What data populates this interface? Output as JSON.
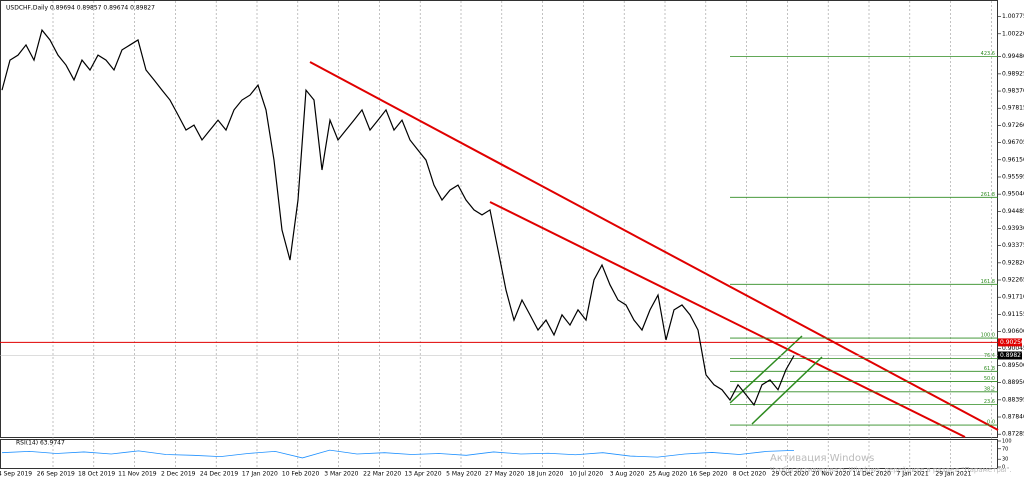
{
  "header": "USDCHF,Daily  0.89694 0.89857 0.89674 0.89827",
  "watermark": [
    "Активация Windows",
    "Чтобы активировать Windows, перейдите в раздел \"Параметры\"."
  ],
  "chart_data": {
    "type": "line",
    "color": "#000000",
    "values": [
      0.984,
      0.9937,
      0.9953,
      0.9986,
      0.9937,
      1.0034,
      1.0002,
      0.9953,
      0.9921,
      0.9873,
      0.9937,
      0.9905,
      0.9953,
      0.9937,
      0.9905,
      0.997,
      0.9986,
      1.0002,
      0.9905,
      0.9873,
      0.984,
      0.9808,
      0.976,
      0.9711,
      0.9727,
      0.9679,
      0.9711,
      0.9743,
      0.9711,
      0.9776,
      0.9808,
      0.9824,
      0.9856,
      0.9776,
      0.9614,
      0.9388,
      0.9291,
      0.9485,
      0.984,
      0.9808,
      0.9582,
      0.9743,
      0.9679,
      0.9711,
      0.9743,
      0.9776,
      0.9711,
      0.9743,
      0.9776,
      0.9711,
      0.9743,
      0.9679,
      0.9646,
      0.9614,
      0.9533,
      0.9485,
      0.9517,
      0.9533,
      0.9485,
      0.9453,
      0.9437,
      0.9453,
      0.9324,
      0.9194,
      0.9097,
      0.9162,
      0.9114,
      0.9065,
      0.9097,
      0.9049,
      0.9114,
      0.9081,
      0.913,
      0.9097,
      0.9227,
      0.9275,
      0.9211,
      0.9162,
      0.9146,
      0.9097,
      0.9065,
      0.913,
      0.9178,
      0.9033,
      0.913,
      0.9146,
      0.9114,
      0.9065,
      0.892,
      0.8888,
      0.8872,
      0.8839,
      0.8888,
      0.8856,
      0.8823,
      0.8888,
      0.8904,
      0.8872,
      0.8937,
      0.89827
    ],
    "ylim": [
      0.87,
      1.0115
    ],
    "yticks": [
      {
        "value": 1.00775,
        "label": "1.00775"
      },
      {
        "value": 1.0022,
        "label": "1.00220"
      },
      {
        "value": 0.9948,
        "label": "0.99480"
      },
      {
        "value": 0.98925,
        "label": "0.98925"
      },
      {
        "value": 0.9837,
        "label": "0.98370"
      },
      {
        "value": 0.97815,
        "label": "0.97815"
      },
      {
        "value": 0.9726,
        "label": "0.97260"
      },
      {
        "value": 0.96705,
        "label": "0.96705"
      },
      {
        "value": 0.9615,
        "label": "0.96150"
      },
      {
        "value": 0.95595,
        "label": "0.95595"
      },
      {
        "value": 0.9504,
        "label": "0.95040"
      },
      {
        "value": 0.94485,
        "label": "0.94485"
      },
      {
        "value": 0.9393,
        "label": "0.93930"
      },
      {
        "value": 0.93375,
        "label": "0.93375"
      },
      {
        "value": 0.9282,
        "label": "0.92820"
      },
      {
        "value": 0.92265,
        "label": "0.92265"
      },
      {
        "value": 0.9171,
        "label": "0.91710"
      },
      {
        "value": 0.91155,
        "label": "0.91155"
      },
      {
        "value": 0.906,
        "label": "0.90600"
      },
      {
        "value": 0.90045,
        "label": "0.90045"
      },
      {
        "value": 0.895,
        "label": "0.89500"
      },
      {
        "value": 0.8895,
        "label": "0.88950"
      },
      {
        "value": 0.88395,
        "label": "0.88395"
      },
      {
        "value": 0.8784,
        "label": "0.87840"
      },
      {
        "value": 0.87285,
        "label": "0.87285"
      }
    ],
    "xtick_labels": [
      "4 Sep 2019",
      "26 Sep 2019",
      "18 Oct 2019",
      "11 Nov 2019",
      "2 Dec 2019",
      "24 Dec 2019",
      "17 Jan 2020",
      "10 Feb 2020",
      "3 Mar 2020",
      "22 Mar 2020",
      "13 Apr 2020",
      "5 May 2020",
      "27 May 2020",
      "18 Jun 2020",
      "10 Jul 2020",
      "3 Aug 2020",
      "25 Aug 2020",
      "16 Sep 2020",
      "8 Oct 2020",
      "29 Oct 2020",
      "20 Nov 2020",
      "14 Dec 2020",
      "7 Jan 2021",
      "29 Jan 2021"
    ],
    "price_labels": [
      {
        "value": 0.9025,
        "label": "0.90250",
        "color": "#e00000"
      },
      {
        "value": 0.89827,
        "label": "0.89827",
        "color": "#000000"
      }
    ],
    "fibonacci": {
      "price_0": 0.8758,
      "price_100": 0.9039,
      "color": "#2e8b20",
      "levels": [
        {
          "value": 0,
          "label": "0.0"
        },
        {
          "value": 23.6,
          "label": "23.6"
        },
        {
          "value": 38.2,
          "label": "38.2"
        },
        {
          "value": 50,
          "label": "50.0"
        },
        {
          "value": 61.8,
          "label": "61.8"
        },
        {
          "value": 76.4,
          "label": "76.4"
        },
        {
          "value": 100,
          "label": "100.0"
        },
        {
          "value": 161.8,
          "label": "161.8"
        },
        {
          "value": 261.8,
          "label": "261.8"
        },
        {
          "value": 423.6,
          "label": "423.6"
        }
      ]
    },
    "rsi": {
      "label": "RSI(14) 63.9747",
      "color": "#1e90ff",
      "ylim": [
        0,
        100
      ],
      "yticks": [
        0,
        30,
        70,
        100
      ],
      "values": [
        55,
        60,
        52,
        58,
        50,
        62,
        48,
        45,
        40,
        52,
        60,
        35,
        65,
        50,
        55,
        48,
        52,
        45,
        58,
        50,
        53,
        47,
        55,
        42,
        38,
        50,
        56,
        48,
        60,
        64
      ]
    }
  }
}
